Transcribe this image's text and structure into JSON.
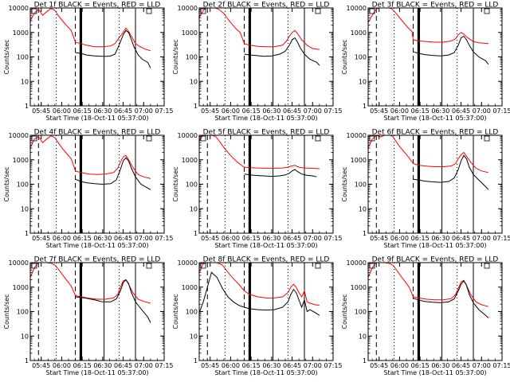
{
  "figure_title": "",
  "colors": {
    "events": "#000000",
    "lld": "#ff0000",
    "axes": "#000000",
    "background": "#ffffff"
  },
  "chart_data": {
    "type": "line",
    "layout": "3x3 small multiples",
    "ylabel": "Counts/sec",
    "xlabel": "Start Time (18-Oct-11 05:37:00)",
    "yscale": "log",
    "ylim": [
      1,
      10000
    ],
    "y_ticks": [
      1,
      10,
      100,
      1000,
      10000
    ],
    "y_tick_labels": [
      "1",
      "10",
      "100",
      "1000",
      "10000"
    ],
    "xlim": [
      "05:37",
      "07:15"
    ],
    "x_ticks": [
      "05:45",
      "06:00",
      "06:15",
      "06:30",
      "06:45",
      "07:00",
      "07:15"
    ],
    "x_tick_labels": [
      "05:45",
      "06:00",
      "06:15",
      "06:30",
      "06:45",
      "07:00",
      "07:15"
    ],
    "grid": false,
    "legend": "in title",
    "vertical_markers": [
      {
        "time": "05:43",
        "style": "dashed"
      },
      {
        "time": "05:56",
        "style": "dotted"
      },
      {
        "time": "06:10",
        "style": "dashed"
      },
      {
        "time": "06:14",
        "style": "thick"
      },
      {
        "time": "06:31",
        "style": "solid"
      },
      {
        "time": "06:42",
        "style": "dotted"
      },
      {
        "time": "06:54",
        "style": "solid"
      }
    ],
    "panels": [
      {
        "title": "Det 1f BLACK = Events, RED = LLD",
        "events": {
          "x": [
            "06:10",
            "06:14",
            "06:18",
            "06:24",
            "06:30",
            "06:33",
            "06:36",
            "06:39",
            "06:42",
            "06:45",
            "06:47",
            "06:49",
            "06:51",
            "06:53",
            "06:56",
            "06:59",
            "07:03",
            "07:05"
          ],
          "y": [
            150,
            140,
            120,
            110,
            105,
            105,
            110,
            130,
            300,
            800,
            1200,
            1000,
            500,
            250,
            120,
            80,
            60,
            35
          ]
        },
        "lld": {
          "x": [
            "05:37",
            "05:40",
            "05:43",
            "05:46",
            "05:49",
            "05:52",
            "05:55",
            "05:58",
            "06:01",
            "06:04",
            "06:07",
            "06:10",
            "06:14",
            "06:18",
            "06:24",
            "06:30",
            "06:36",
            "06:39",
            "06:42",
            "06:45",
            "06:47",
            "06:49",
            "06:51",
            "06:54",
            "06:58",
            "07:02",
            "07:05"
          ],
          "y": [
            3000,
            6000,
            9000,
            5000,
            7000,
            9500,
            8000,
            4500,
            2800,
            1800,
            1200,
            400,
            350,
            300,
            260,
            260,
            280,
            350,
            600,
            1000,
            1500,
            1100,
            700,
            350,
            250,
            200,
            180
          ]
        }
      },
      {
        "title": "Det 2f BLACK = Events, RED = LLD",
        "events": {
          "x": [
            "06:10",
            "06:14",
            "06:18",
            "06:24",
            "06:30",
            "06:36",
            "06:40",
            "06:43",
            "06:45",
            "06:47",
            "06:49",
            "06:51",
            "06:54",
            "06:58",
            "07:03",
            "07:05"
          ],
          "y": [
            130,
            120,
            115,
            105,
            110,
            130,
            170,
            300,
            500,
            600,
            400,
            230,
            130,
            80,
            60,
            45
          ]
        },
        "lld": {
          "x": [
            "05:37",
            "05:40",
            "05:43",
            "05:47",
            "05:51",
            "05:55",
            "05:58",
            "06:01",
            "06:04",
            "06:07",
            "06:10",
            "06:14",
            "06:20",
            "06:26",
            "06:32",
            "06:38",
            "06:41",
            "06:43",
            "06:45",
            "06:47",
            "06:49",
            "06:52",
            "06:56",
            "07:00",
            "07:05"
          ],
          "y": [
            4000,
            8000,
            10500,
            10500,
            9000,
            6000,
            3500,
            2200,
            1400,
            1000,
            350,
            300,
            270,
            260,
            260,
            300,
            450,
            700,
            1000,
            1200,
            900,
            500,
            300,
            220,
            200
          ]
        }
      },
      {
        "title": "Det 3f BLACK = Events, RED = LLD",
        "events": {
          "x": [
            "06:10",
            "06:14",
            "06:18",
            "06:24",
            "06:30",
            "06:36",
            "06:40",
            "06:43",
            "06:45",
            "06:47",
            "06:49",
            "06:51",
            "06:54",
            "06:58",
            "07:03",
            "07:05"
          ],
          "y": [
            160,
            140,
            125,
            115,
            110,
            120,
            150,
            300,
            600,
            700,
            500,
            300,
            160,
            100,
            70,
            50
          ]
        },
        "lld": {
          "x": [
            "05:37",
            "05:40",
            "05:43",
            "05:46",
            "05:50",
            "05:54",
            "05:57",
            "06:00",
            "06:03",
            "06:06",
            "06:09",
            "06:10",
            "06:14",
            "06:20",
            "06:26",
            "06:32",
            "06:38",
            "06:41",
            "06:43",
            "06:45",
            "06:47",
            "06:50",
            "06:54",
            "06:58",
            "07:05"
          ],
          "y": [
            2500,
            5000,
            9000,
            10500,
            10500,
            9500,
            6500,
            4000,
            2500,
            1600,
            1100,
            500,
            450,
            420,
            400,
            400,
            450,
            550,
            800,
            1000,
            850,
            600,
            420,
            380,
            350
          ]
        }
      },
      {
        "title": "Det 4f BLACK = Events, RED = LLD",
        "events": {
          "x": [
            "06:10",
            "06:14",
            "06:18",
            "06:24",
            "06:30",
            "06:36",
            "06:40",
            "06:43",
            "06:45",
            "06:47",
            "06:49",
            "06:51",
            "06:54",
            "06:58",
            "07:03",
            "07:05"
          ],
          "y": [
            160,
            130,
            115,
            105,
            100,
            105,
            150,
            400,
            900,
            1200,
            900,
            450,
            200,
            100,
            70,
            60
          ]
        },
        "lld": {
          "x": [
            "05:37",
            "05:40",
            "05:43",
            "05:46",
            "05:49",
            "05:52",
            "05:55",
            "05:58",
            "06:01",
            "06:04",
            "06:07",
            "06:10",
            "06:14",
            "06:20",
            "06:26",
            "06:32",
            "06:38",
            "06:41",
            "06:43",
            "06:45",
            "06:47",
            "06:49",
            "06:52",
            "06:56",
            "07:00",
            "07:05"
          ],
          "y": [
            3000,
            7000,
            9000,
            5000,
            7000,
            9500,
            8000,
            4500,
            2700,
            1700,
            1100,
            350,
            300,
            260,
            250,
            260,
            300,
            450,
            800,
            1300,
            1500,
            1000,
            500,
            250,
            200,
            170
          ]
        }
      },
      {
        "title": "Det 5f BLACK = Events, RED = LLD",
        "events": {
          "x": [
            "06:10",
            "06:14",
            "06:18",
            "06:24",
            "06:30",
            "06:36",
            "06:40",
            "06:43",
            "06:45",
            "06:47",
            "06:49",
            "06:52",
            "06:56",
            "07:00",
            "07:03"
          ],
          "y": [
            260,
            240,
            230,
            220,
            210,
            220,
            240,
            280,
            350,
            400,
            330,
            260,
            230,
            220,
            200
          ]
        },
        "lld": {
          "x": [
            "05:37",
            "05:40",
            "05:43",
            "05:46",
            "05:49",
            "05:52",
            "05:55",
            "05:58",
            "06:01",
            "06:04",
            "06:07",
            "06:10",
            "06:14",
            "06:20",
            "06:26",
            "06:32",
            "06:38",
            "06:42",
            "06:45",
            "06:47",
            "06:49",
            "06:52",
            "06:58",
            "07:05"
          ],
          "y": [
            6000,
            10500,
            10500,
            10000,
            9000,
            5500,
            3200,
            2000,
            1300,
            900,
            650,
            500,
            480,
            460,
            450,
            450,
            460,
            500,
            560,
            600,
            520,
            470,
            450,
            430
          ]
        }
      },
      {
        "title": "Det 6f BLACK = Events, RED = LLD",
        "events": {
          "x": [
            "06:10",
            "06:14",
            "06:18",
            "06:24",
            "06:30",
            "06:36",
            "06:40",
            "06:43",
            "06:45",
            "06:47",
            "06:49",
            "06:51",
            "06:54",
            "06:58",
            "07:03",
            "07:05"
          ],
          "y": [
            160,
            150,
            135,
            125,
            120,
            130,
            180,
            400,
            900,
            1500,
            1100,
            500,
            250,
            150,
            80,
            60
          ]
        },
        "lld": {
          "x": [
            "05:37",
            "05:40",
            "05:43",
            "05:46",
            "05:49",
            "05:52",
            "05:55",
            "05:58",
            "06:01",
            "06:04",
            "06:07",
            "06:10",
            "06:14",
            "06:20",
            "06:26",
            "06:32",
            "06:38",
            "06:41",
            "06:43",
            "06:45",
            "06:47",
            "06:49",
            "06:52",
            "06:56",
            "07:00",
            "07:05"
          ],
          "y": [
            3000,
            7000,
            10000,
            8500,
            10000,
            10500,
            9000,
            5000,
            3000,
            1900,
            1200,
            700,
            600,
            550,
            520,
            520,
            560,
            700,
            1100,
            1600,
            2000,
            1400,
            800,
            450,
            350,
            300
          ]
        }
      },
      {
        "title": "Det 7f BLACK = Events, RED = LLD",
        "events": {
          "x": [
            "06:10",
            "06:14",
            "06:18",
            "06:24",
            "06:30",
            "06:36",
            "06:40",
            "06:43",
            "06:45",
            "06:47",
            "06:49",
            "06:51",
            "06:54",
            "06:58",
            "07:03",
            "07:05"
          ],
          "y": [
            400,
            380,
            350,
            300,
            250,
            250,
            330,
            700,
            1500,
            2000,
            1400,
            600,
            250,
            130,
            60,
            35
          ]
        },
        "lld": {
          "x": [
            "05:37",
            "05:40",
            "05:43",
            "05:46",
            "05:49",
            "05:52",
            "05:55",
            "05:58",
            "06:01",
            "06:04",
            "06:07",
            "06:10",
            "06:14",
            "06:20",
            "06:26",
            "06:32",
            "06:38",
            "06:41",
            "06:43",
            "06:45",
            "06:47",
            "06:49",
            "06:52",
            "06:56",
            "07:00",
            "07:05"
          ],
          "y": [
            2500,
            6000,
            10500,
            10500,
            10000,
            9500,
            8000,
            5000,
            3000,
            1800,
            1100,
            450,
            400,
            350,
            320,
            320,
            360,
            500,
            1000,
            1800,
            2000,
            1300,
            600,
            320,
            260,
            220
          ]
        }
      },
      {
        "title": "Det 8f BLACK = Events, RED = LLD",
        "events": {
          "x": [
            "05:37",
            "05:40",
            "05:43",
            "05:46",
            "05:50",
            "05:54",
            "05:58",
            "06:02",
            "06:06",
            "06:10",
            "06:14",
            "06:20",
            "06:26",
            "06:32",
            "06:38",
            "06:42",
            "06:44",
            "06:46",
            "06:48",
            "06:50",
            "06:52",
            "06:54",
            "06:56",
            "06:58",
            "07:02",
            "07:05"
          ],
          "y": [
            90,
            250,
            1000,
            4000,
            2500,
            900,
            400,
            250,
            180,
            150,
            130,
            120,
            115,
            120,
            150,
            250,
            500,
            800,
            600,
            300,
            150,
            300,
            100,
            120,
            90,
            70
          ]
        },
        "lld": {
          "x": [
            "05:37",
            "05:40",
            "05:43",
            "05:46",
            "05:50",
            "05:54",
            "05:58",
            "06:02",
            "06:06",
            "06:10",
            "06:14",
            "06:20",
            "06:26",
            "06:32",
            "06:38",
            "06:42",
            "06:44",
            "06:46",
            "06:48",
            "06:50",
            "06:52",
            "06:54",
            "06:56",
            "06:58",
            "07:02",
            "07:05"
          ],
          "y": [
            4000,
            9000,
            10500,
            10500,
            10000,
            8000,
            4000,
            2200,
            1300,
            700,
            500,
            400,
            360,
            360,
            400,
            600,
            1000,
            1300,
            1000,
            600,
            400,
            700,
            250,
            220,
            190,
            180
          ]
        }
      },
      {
        "title": "Det 9f BLACK = Events, RED = LLD",
        "events": {
          "x": [
            "06:10",
            "06:14",
            "06:18",
            "06:24",
            "06:30",
            "06:36",
            "06:40",
            "06:43",
            "06:45",
            "06:47",
            "06:49",
            "06:51",
            "06:54",
            "06:58",
            "07:03",
            "07:05"
          ],
          "y": [
            350,
            300,
            260,
            240,
            230,
            250,
            330,
            700,
            1300,
            1800,
            1200,
            500,
            230,
            120,
            70,
            55
          ]
        },
        "lld": {
          "x": [
            "05:37",
            "05:40",
            "05:43",
            "05:46",
            "05:49",
            "05:52",
            "05:55",
            "05:58",
            "06:01",
            "06:04",
            "06:07",
            "06:10",
            "06:14",
            "06:20",
            "06:26",
            "06:32",
            "06:38",
            "06:41",
            "06:43",
            "06:45",
            "06:47",
            "06:49",
            "06:52",
            "06:56",
            "07:00",
            "07:05"
          ],
          "y": [
            2500,
            6000,
            10500,
            10500,
            10000,
            9500,
            8000,
            4800,
            2800,
            1700,
            1000,
            400,
            360,
            320,
            300,
            300,
            340,
            500,
            900,
            1600,
            1900,
            1200,
            500,
            250,
            190,
            160
          ]
        }
      }
    ]
  }
}
